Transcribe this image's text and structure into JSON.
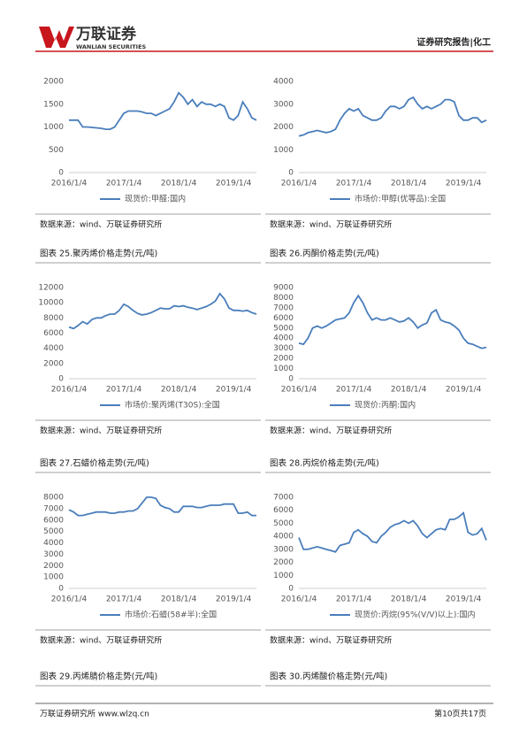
{
  "header": {
    "logo_name": "万联证券",
    "logo_en": "WANLIAN SECURITIES",
    "report_tag": "证券研究报告|化工"
  },
  "chart_data": [
    {
      "type": "line",
      "xlim": [
        0,
        41
      ],
      "xticks": [
        {
          "value": 0,
          "label": "2016/1/4"
        },
        {
          "value": 12,
          "label": "2017/1/4"
        },
        {
          "value": 24,
          "label": "2018/1/4"
        },
        {
          "value": 36,
          "label": "2019/1/4"
        }
      ],
      "ylim": [
        0,
        2000
      ],
      "yticks": [
        0,
        500,
        1000,
        1500,
        2000
      ],
      "series": [
        {
          "name": "现货价:甲醛:国内",
          "color": "#4a7ebb",
          "values": [
            1150,
            1150,
            1150,
            1000,
            1000,
            990,
            980,
            970,
            950,
            950,
            1000,
            1150,
            1300,
            1350,
            1350,
            1350,
            1330,
            1300,
            1300,
            1250,
            1300,
            1350,
            1400,
            1550,
            1750,
            1650,
            1500,
            1600,
            1450,
            1550,
            1500,
            1500,
            1450,
            1500,
            1450,
            1200,
            1150,
            1250,
            1550,
            1400,
            1200,
            1150
          ]
        }
      ],
      "source": "数据来源：wind、万联证券研究所"
    },
    {
      "type": "line",
      "xlim": [
        0,
        41
      ],
      "xticks": [
        {
          "value": 0,
          "label": "2016/1/4"
        },
        {
          "value": 12,
          "label": "2017/1/4"
        },
        {
          "value": 24,
          "label": "2018/1/4"
        },
        {
          "value": 36,
          "label": "2019/1/4"
        }
      ],
      "ylim": [
        0,
        4000
      ],
      "yticks": [
        0,
        1000,
        2000,
        3000,
        4000
      ],
      "series": [
        {
          "name": "市场价:甲醇(优等品):全国",
          "color": "#4a7ebb",
          "values": [
            1600,
            1650,
            1750,
            1800,
            1850,
            1800,
            1750,
            1800,
            1900,
            2300,
            2600,
            2800,
            2700,
            2800,
            2500,
            2400,
            2300,
            2300,
            2400,
            2700,
            2900,
            2900,
            2800,
            2900,
            3200,
            3300,
            3000,
            2800,
            2900,
            2800,
            2900,
            3000,
            3200,
            3200,
            3100,
            2500,
            2300,
            2300,
            2400,
            2400,
            2200,
            2300
          ]
        }
      ],
      "source": "数据来源：wind、万联证券研究所"
    },
    {
      "type": "line",
      "title": "图表 25.聚丙烯价格走势(元/吨)",
      "xlim": [
        0,
        41
      ],
      "xticks": [
        {
          "value": 0,
          "label": "2016/1/4"
        },
        {
          "value": 12,
          "label": "2017/1/4"
        },
        {
          "value": 24,
          "label": "2018/1/4"
        },
        {
          "value": 36,
          "label": "2019/1/4"
        }
      ],
      "ylim": [
        0,
        12000
      ],
      "yticks": [
        0,
        2000,
        4000,
        6000,
        8000,
        10000,
        12000
      ],
      "series": [
        {
          "name": "市场价:聚丙烯(T30S):全国",
          "color": "#4a7ebb",
          "values": [
            6800,
            6600,
            7000,
            7500,
            7200,
            7800,
            8000,
            8000,
            8300,
            8500,
            8500,
            9000,
            9800,
            9500,
            9000,
            8600,
            8400,
            8500,
            8700,
            9000,
            9300,
            9200,
            9200,
            9600,
            9500,
            9600,
            9400,
            9300,
            9100,
            9300,
            9500,
            9800,
            10200,
            11200,
            10500,
            9300,
            9000,
            9000,
            8900,
            9000,
            8700,
            8500
          ]
        }
      ],
      "source": "数据来源：wind、万联证券研究所"
    },
    {
      "type": "line",
      "title": "图表 26.丙酮价格走势(元/吨)",
      "xlim": [
        0,
        41
      ],
      "xticks": [
        {
          "value": 0,
          "label": "2016/1/4"
        },
        {
          "value": 12,
          "label": "2017/1/4"
        },
        {
          "value": 24,
          "label": "2018/1/4"
        },
        {
          "value": 36,
          "label": "2019/1/4"
        }
      ],
      "ylim": [
        0,
        9000
      ],
      "yticks": [
        0,
        1000,
        2000,
        3000,
        4000,
        5000,
        6000,
        7000,
        8000,
        9000
      ],
      "series": [
        {
          "name": "现货价:丙酮:国内",
          "color": "#4a7ebb",
          "values": [
            3500,
            3400,
            4000,
            5000,
            5200,
            5000,
            5200,
            5500,
            5800,
            5900,
            6000,
            6500,
            7500,
            8200,
            7500,
            6500,
            5800,
            6000,
            5800,
            5800,
            6000,
            5800,
            5600,
            5700,
            6000,
            5600,
            5000,
            5300,
            5500,
            6500,
            6800,
            5800,
            5600,
            5500,
            5200,
            4800,
            4000,
            3500,
            3400,
            3200,
            3000,
            3100
          ]
        }
      ],
      "source": "数据来源：wind、万联证券研究所"
    },
    {
      "type": "line",
      "title": "图表 27.石蜡价格走势(元/吨)",
      "xlim": [
        0,
        41
      ],
      "xticks": [
        {
          "value": 0,
          "label": "2016/1/4"
        },
        {
          "value": 12,
          "label": "2017/1/4"
        },
        {
          "value": 24,
          "label": "2018/1/4"
        },
        {
          "value": 36,
          "label": "2019/1/4"
        }
      ],
      "ylim": [
        0,
        8000
      ],
      "yticks": [
        0,
        1000,
        2000,
        3000,
        4000,
        5000,
        6000,
        7000,
        8000
      ],
      "series": [
        {
          "name": "市场价:石蜡(58#半):全国",
          "color": "#4a7ebb",
          "values": [
            6900,
            6700,
            6400,
            6400,
            6500,
            6600,
            6700,
            6700,
            6700,
            6600,
            6600,
            6700,
            6700,
            6800,
            6800,
            7000,
            7500,
            8000,
            8000,
            7900,
            7300,
            7100,
            7000,
            6700,
            6700,
            7200,
            7200,
            7200,
            7100,
            7100,
            7200,
            7300,
            7300,
            7300,
            7400,
            7400,
            7400,
            6600,
            6600,
            6700,
            6400,
            6400
          ]
        }
      ],
      "source": "数据来源：wind、万联证券研究所"
    },
    {
      "type": "line",
      "title": "图表 28.丙烷价格走势(元/吨)",
      "xlim": [
        0,
        41
      ],
      "xticks": [
        {
          "value": 0,
          "label": "2016/1/4"
        },
        {
          "value": 12,
          "label": "2017/1/4"
        },
        {
          "value": 24,
          "label": "2018/1/4"
        },
        {
          "value": 36,
          "label": "2019/1/4"
        }
      ],
      "ylim": [
        0,
        7000
      ],
      "yticks": [
        0,
        1000,
        2000,
        3000,
        4000,
        5000,
        6000,
        7000
      ],
      "series": [
        {
          "name": "现货价:丙烷(95%(V/V)以上):国内",
          "color": "#4a7ebb",
          "values": [
            3900,
            3000,
            3000,
            3100,
            3200,
            3100,
            3000,
            2900,
            2800,
            3300,
            3400,
            3500,
            4300,
            4500,
            4200,
            4000,
            3600,
            3500,
            4000,
            4300,
            4700,
            4900,
            5000,
            5200,
            5000,
            5200,
            4800,
            4200,
            3900,
            4200,
            4500,
            4600,
            4500,
            5300,
            5300,
            5500,
            5800,
            4300,
            4100,
            4200,
            4600,
            3700
          ]
        }
      ],
      "source": "数据来源：wind、万联证券研究所"
    }
  ],
  "next_captions": [
    "图表 29.丙烯腈价格走势(元/吨)",
    "图表 30.丙烯酸价格走势(元/吨)"
  ],
  "footer": {
    "left": "万联证券研究所 www.wlzq.cn",
    "right": "第10页共17页"
  }
}
